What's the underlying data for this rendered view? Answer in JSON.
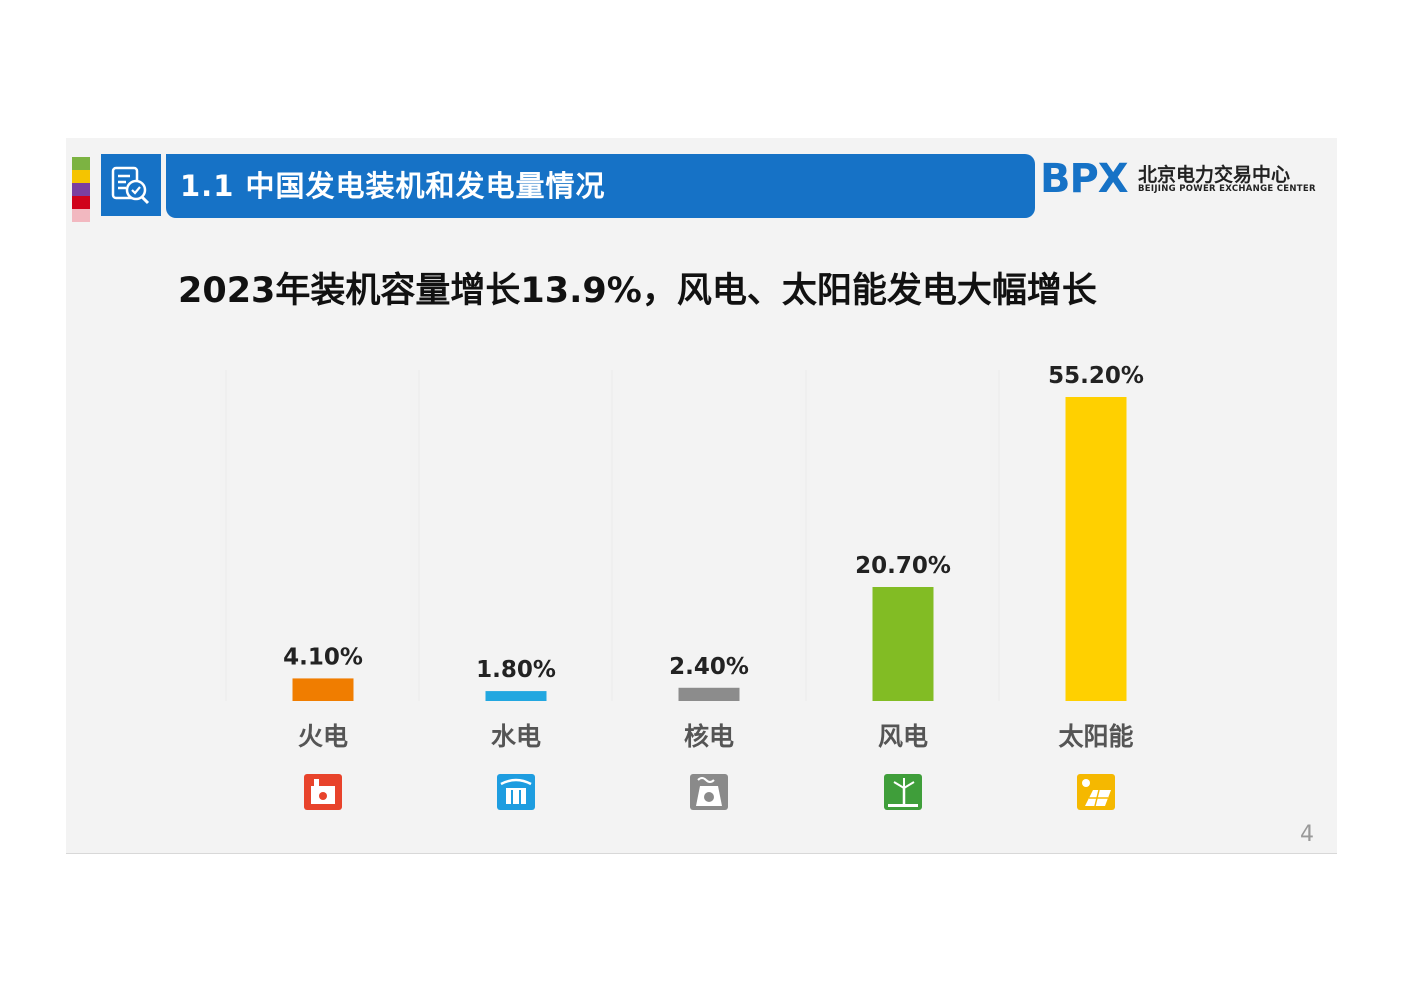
{
  "header": {
    "title": "1.1 中国发电装机和发电量情况"
  },
  "logo": {
    "letters": "BPX",
    "name_cn": "北京电力交易中心",
    "name_en": "BEIJING POWER EXCHANGE CENTER"
  },
  "headline": "2023年装机容量增长13.9%，风电、太阳能发电大幅增长",
  "page_number": "4",
  "stripe_colors": [
    "#7cb342",
    "#f5c400",
    "#7b3fa0",
    "#d0021b",
    "#f2b8c0"
  ],
  "chart_data": {
    "type": "bar",
    "title": "",
    "xlabel": "",
    "ylabel": "",
    "ylim": [
      0,
      55.2
    ],
    "grid": false,
    "categories": [
      "火电",
      "水电",
      "核电",
      "风电",
      "太阳能"
    ],
    "values": [
      4.1,
      1.8,
      2.4,
      20.7,
      55.2
    ],
    "value_labels": [
      "4.10%",
      "1.80%",
      "2.40%",
      "20.70%",
      "55.20%"
    ],
    "colors": [
      "#f07d00",
      "#22a7e0",
      "#8c8c8c",
      "#82bc24",
      "#ffd000"
    ],
    "icons": [
      "thermal-power-icon",
      "hydro-power-icon",
      "nuclear-power-icon",
      "wind-power-icon",
      "solar-power-icon"
    ]
  }
}
